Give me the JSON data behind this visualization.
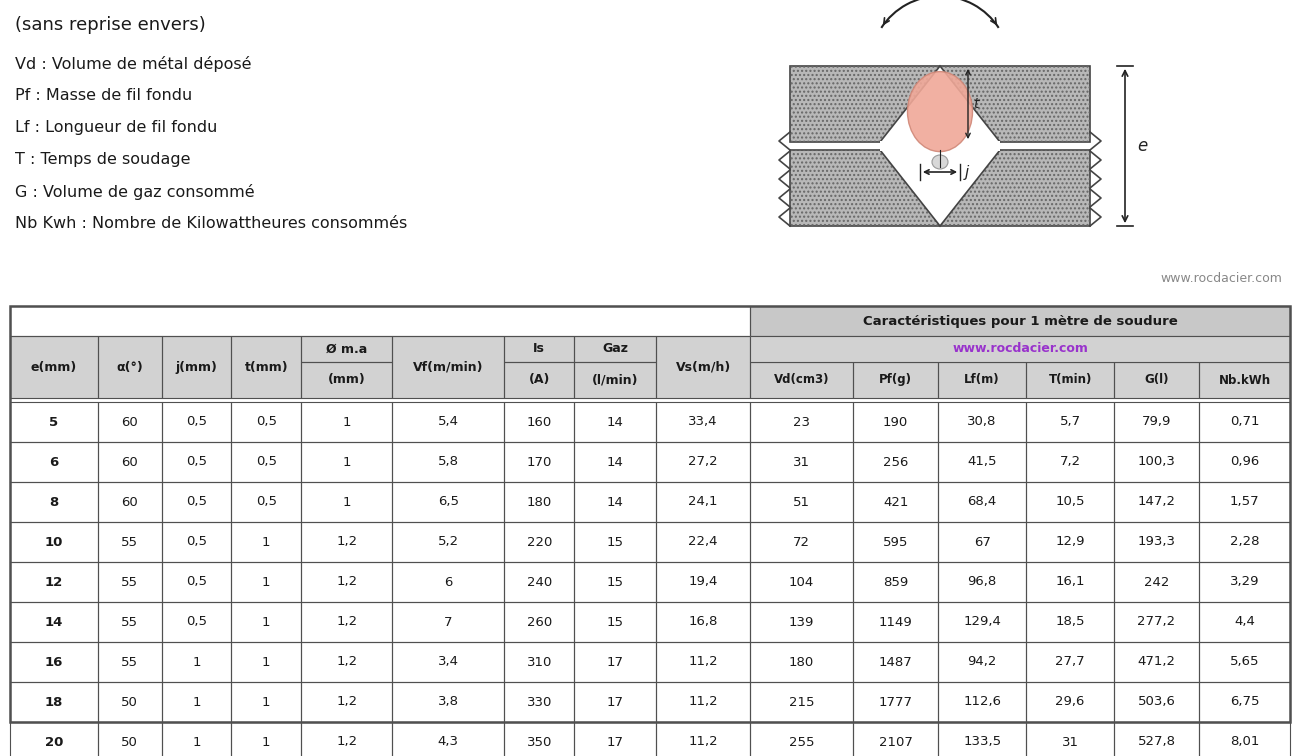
{
  "title_line1": "(sans reprise envers)",
  "legend_lines": [
    "Vd : Volume de métal déposé",
    "Pf : Masse de fil fondu",
    "Lf : Longueur de fil fondu",
    "T : Temps de soudage",
    "G : Volume de gaz consommé",
    "Nb Kwh : Nombre de Kilowattheures consommés"
  ],
  "website": "www.rocdacier.com",
  "table_header_main": "Caractéristiques pour 1 mètre de soudure",
  "table_header_sub": "www.rocdacier.com",
  "rows": [
    [
      "5",
      "60",
      "0,5",
      "0,5",
      "1",
      "5,4",
      "160",
      "14",
      "33,4",
      "23",
      "190",
      "30,8",
      "5,7",
      "79,9",
      "0,71"
    ],
    [
      "6",
      "60",
      "0,5",
      "0,5",
      "1",
      "5,8",
      "170",
      "14",
      "27,2",
      "31",
      "256",
      "41,5",
      "7,2",
      "100,3",
      "0,96"
    ],
    [
      "8",
      "60",
      "0,5",
      "0,5",
      "1",
      "6,5",
      "180",
      "14",
      "24,1",
      "51",
      "421",
      "68,4",
      "10,5",
      "147,2",
      "1,57"
    ],
    [
      "10",
      "55",
      "0,5",
      "1",
      "1,2",
      "5,2",
      "220",
      "15",
      "22,4",
      "72",
      "595",
      "67",
      "12,9",
      "193,3",
      "2,28"
    ],
    [
      "12",
      "55",
      "0,5",
      "1",
      "1,2",
      "6",
      "240",
      "15",
      "19,4",
      "104",
      "859",
      "96,8",
      "16,1",
      "242",
      "3,29"
    ],
    [
      "14",
      "55",
      "0,5",
      "1",
      "1,2",
      "7",
      "260",
      "15",
      "16,8",
      "139",
      "1149",
      "129,4",
      "18,5",
      "277,2",
      "4,4"
    ],
    [
      "16",
      "55",
      "1",
      "1",
      "1,2",
      "3,4",
      "310",
      "17",
      "11,2",
      "180",
      "1487",
      "94,2",
      "27,7",
      "471,2",
      "5,65"
    ],
    [
      "18",
      "50",
      "1",
      "1",
      "1,2",
      "3,8",
      "330",
      "17",
      "11,2",
      "215",
      "1777",
      "112,6",
      "29,6",
      "503,6",
      "6,75"
    ],
    [
      "20",
      "50",
      "1",
      "1",
      "1,2",
      "4,3",
      "350",
      "17",
      "11,2",
      "255",
      "2107",
      "133,5",
      "31",
      "527,8",
      "8,01"
    ]
  ],
  "bg_color": "#ffffff",
  "table_header_color": "#c8c8c8",
  "table_border_color": "#505050",
  "text_color": "#1a1a1a",
  "header_purple": "#9933cc",
  "col_widths_raw": [
    58,
    42,
    46,
    46,
    60,
    74,
    46,
    54,
    62,
    68,
    56,
    58,
    58,
    56,
    60
  ]
}
